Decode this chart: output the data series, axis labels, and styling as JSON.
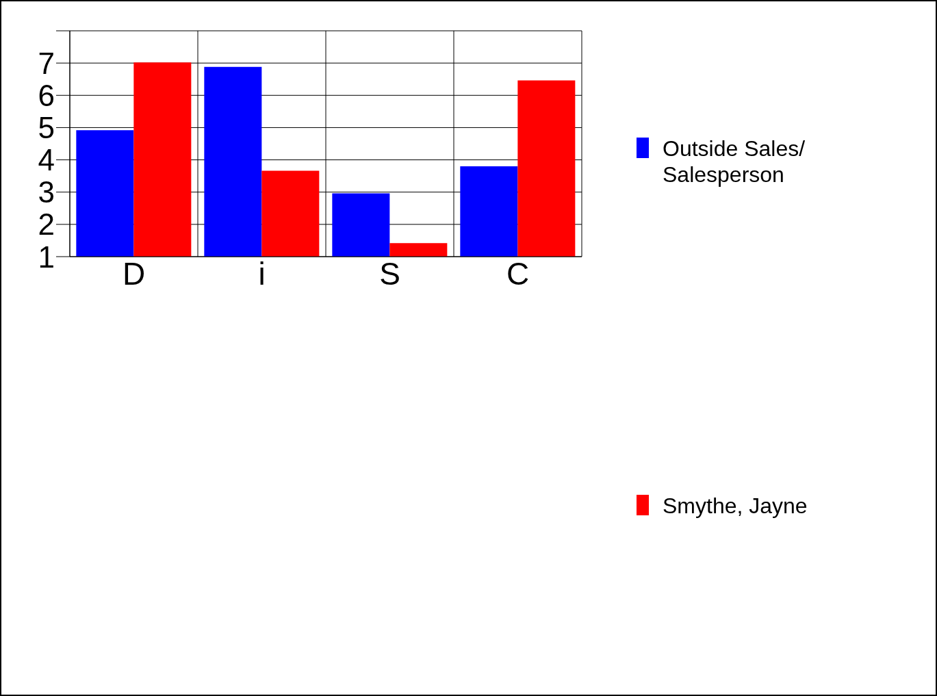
{
  "chart_data": {
    "type": "bar",
    "categories": [
      "D",
      "i",
      "S",
      "C"
    ],
    "series": [
      {
        "name": "Outside Sales/ Salesperson",
        "color": "#0000ff",
        "values": [
          4.92,
          6.88,
          2.96,
          3.8
        ]
      },
      {
        "name": "Smythe, Jayne",
        "color": "#ff0000",
        "values": [
          7.02,
          3.66,
          1.42,
          6.46
        ]
      }
    ],
    "ylim": [
      1,
      8
    ],
    "yticks": [
      1,
      2,
      3,
      4,
      5,
      6,
      7,
      {
        "value": 8,
        "label": null
      }
    ],
    "grid": true,
    "legend": "right"
  }
}
